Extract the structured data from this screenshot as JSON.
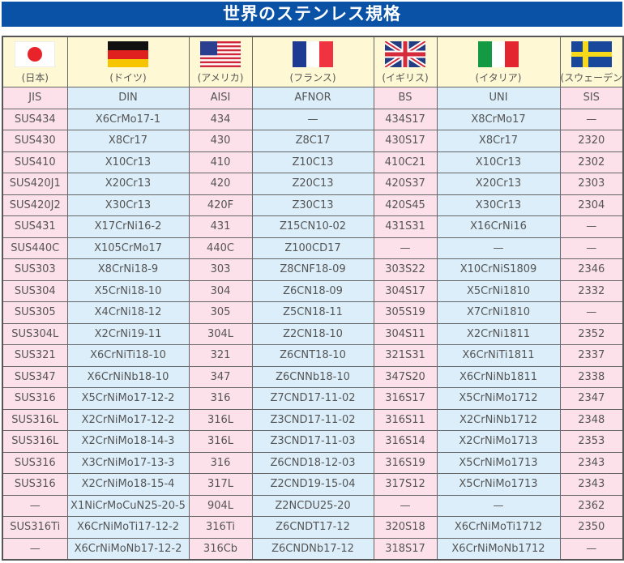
{
  "title": "世界のステンレス規格",
  "colors": {
    "title_bg": "#0a52a6",
    "header_bg": "#fff8d4",
    "pink": "#fde1ea",
    "blue": "#dbeefa"
  },
  "columns": [
    {
      "country": "(日本)",
      "flag": "japan-flag-icon",
      "code": "JIS"
    },
    {
      "country": "(ドイツ)",
      "flag": "germany-flag-icon",
      "code": "DIN"
    },
    {
      "country": "(アメリカ)",
      "flag": "usa-flag-icon",
      "code": "AISI"
    },
    {
      "country": "(フランス)",
      "flag": "france-flag-icon",
      "code": "AFNOR"
    },
    {
      "country": "(イギリス)",
      "flag": "uk-flag-icon",
      "code": "BS"
    },
    {
      "country": "(イタリア)",
      "flag": "italy-flag-icon",
      "code": "UNI"
    },
    {
      "country": "(スウェーデン)",
      "flag": "sweden-flag-icon",
      "code": "SIS"
    }
  ],
  "rows": [
    [
      "SUS434",
      "X6CrMo17-1",
      "434",
      "—",
      "434S17",
      "X8CrMo17",
      "—"
    ],
    [
      "SUS430",
      "X8Cr17",
      "430",
      "Z8C17",
      "430S17",
      "X8Cr17",
      "2320"
    ],
    [
      "SUS410",
      "X10Cr13",
      "410",
      "Z10C13",
      "410C21",
      "X10Cr13",
      "2302"
    ],
    [
      "SUS420J1",
      "X20Cr13",
      "420",
      "Z20C13",
      "420S37",
      "X20Cr13",
      "2303"
    ],
    [
      "SUS420J2",
      "X30Cr13",
      "420F",
      "Z30C13",
      "420S45",
      "X30Cr13",
      "2304"
    ],
    [
      "SUS431",
      "X17CrNi16-2",
      "431",
      "Z15CN10-02",
      "431S31",
      "X16CrNi16",
      "—"
    ],
    [
      "SUS440C",
      "X105CrMo17",
      "440C",
      "Z100CD17",
      "—",
      "—",
      "—"
    ],
    [
      "SUS303",
      "X8CrNi18-9",
      "303",
      "Z8CNF18-09",
      "303S22",
      "X10CrNiS1809",
      "2346"
    ],
    [
      "SUS304",
      "X5CrNi18-10",
      "304",
      "Z6CN18-09",
      "304S17",
      "X5CrNi1810",
      "2332"
    ],
    [
      "SUS305",
      "X4CrNi18-12",
      "305",
      "Z5CN18-11",
      "305S19",
      "X7CrNi1810",
      "—"
    ],
    [
      "SUS304L",
      "X2CrNi19-11",
      "304L",
      "Z2CN18-10",
      "304S11",
      "X2CrNi1811",
      "2352"
    ],
    [
      "SUS321",
      "X6CrNiTi18-10",
      "321",
      "Z6CNT18-10",
      "321S31",
      "X6CrNiTi1811",
      "2337"
    ],
    [
      "SUS347",
      "X6CrNiNb18-10",
      "347",
      "Z6CNNb18-10",
      "347S20",
      "X6CrNiNb1811",
      "2338"
    ],
    [
      "SUS316",
      "X5CrNiMo17-12-2",
      "316",
      "Z7CND17-11-02",
      "316S17",
      "X5CrNiMo1712",
      "2347"
    ],
    [
      "SUS316L",
      "X2CrNiMo17-12-2",
      "316L",
      "Z3CND17-11-02",
      "316S11",
      "X2CrNiNb1712",
      "2348"
    ],
    [
      "SUS316L",
      "X2CrNiMo18-14-3",
      "316L",
      "Z3CND17-11-03",
      "316S14",
      "X2CrNiMo1713",
      "2353"
    ],
    [
      "SUS316",
      "X3CrNiMo17-13-3",
      "316",
      "Z6CND18-12-03",
      "316S19",
      "X5CrNiMo1713",
      "2343"
    ],
    [
      "SUS316",
      "X2CrNiMo18-15-4",
      "317L",
      "Z2CND19-15-04",
      "317S12",
      "X5CrNiMo1713",
      "2343"
    ],
    [
      "—",
      "X1NiCrMoCuN25-20-5",
      "904L",
      "Z2NCDU25-20",
      "—",
      "—",
      "2362"
    ],
    [
      "SUS316Ti",
      "X6CrNiMoTi17-12-2",
      "316Ti",
      "Z6CNDT17-12",
      "320S18",
      "X6CrNiMoTi1712",
      "2350"
    ],
    [
      "—",
      "X6CrNiMoNb17-12-2",
      "316Cb",
      "Z6CNDNb17-12",
      "318S17",
      "X6CrNiMoNb1712",
      "—"
    ]
  ]
}
